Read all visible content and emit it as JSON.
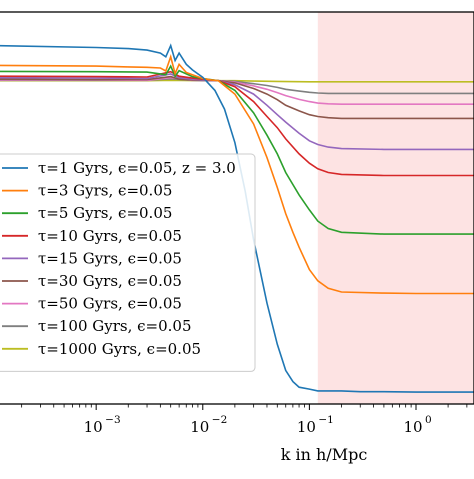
{
  "chart_data": {
    "type": "line",
    "title": "",
    "xlabel": "k in h/Mpc",
    "ylabel": "",
    "xscale": "log",
    "xlim": [
      0.00012,
      3.5
    ],
    "ylim": [
      0,
      1.05
    ],
    "grid": false,
    "legend_position": "lower-left",
    "shaded_region": {
      "x_start": 0.12,
      "x_end": 3.5,
      "color": "#fde3e3"
    },
    "xticks": [
      {
        "value": 0.001,
        "base": "10",
        "exp": "−3"
      },
      {
        "value": 0.01,
        "base": "10",
        "exp": "−2"
      },
      {
        "value": 0.1,
        "base": "10",
        "exp": "−1"
      },
      {
        "value": 1,
        "base": "10",
        "exp": "0"
      }
    ],
    "series": [
      {
        "name": "τ=1 Gyrs, ϵ=0.05, z = 3.0",
        "color": "#1f77b4",
        "x": [
          0.00012,
          0.001,
          0.002,
          0.003,
          0.004,
          0.0045,
          0.005,
          0.0055,
          0.006,
          0.007,
          0.008,
          0.01,
          0.013,
          0.016,
          0.02,
          0.025,
          0.03,
          0.04,
          0.05,
          0.06,
          0.07,
          0.08,
          0.1,
          0.12,
          0.15,
          0.2,
          0.3,
          0.5,
          1,
          3.5
        ],
        "y": [
          0.96,
          0.955,
          0.952,
          0.948,
          0.94,
          0.93,
          0.96,
          0.92,
          0.94,
          0.91,
          0.895,
          0.875,
          0.84,
          0.79,
          0.7,
          0.57,
          0.44,
          0.27,
          0.16,
          0.09,
          0.06,
          0.045,
          0.04,
          0.035,
          0.035,
          0.035,
          0.033,
          0.033,
          0.032,
          0.032
        ]
      },
      {
        "name": "τ=3 Gyrs, ϵ=0.05",
        "color": "#ff7f0e",
        "x": [
          0.00012,
          0.001,
          0.002,
          0.003,
          0.004,
          0.0045,
          0.005,
          0.0055,
          0.006,
          0.007,
          0.008,
          0.01,
          0.012,
          0.014,
          0.02,
          0.03,
          0.04,
          0.05,
          0.06,
          0.07,
          0.08,
          0.1,
          0.12,
          0.15,
          0.2,
          0.5,
          1,
          3.5
        ],
        "y": [
          0.907,
          0.905,
          0.903,
          0.902,
          0.9,
          0.892,
          0.93,
          0.885,
          0.91,
          0.888,
          0.882,
          0.872,
          0.868,
          0.866,
          0.83,
          0.75,
          0.66,
          0.58,
          0.51,
          0.46,
          0.42,
          0.36,
          0.33,
          0.31,
          0.3,
          0.297,
          0.296,
          0.296
        ]
      },
      {
        "name": "τ=5 Gyrs, ϵ=0.05",
        "color": "#2ca02c",
        "x": [
          0.00012,
          0.001,
          0.003,
          0.0045,
          0.005,
          0.0055,
          0.006,
          0.008,
          0.01,
          0.014,
          0.02,
          0.03,
          0.04,
          0.05,
          0.06,
          0.08,
          0.1,
          0.12,
          0.15,
          0.2,
          0.5,
          1,
          3.5
        ],
        "y": [
          0.891,
          0.89,
          0.889,
          0.882,
          0.905,
          0.878,
          0.893,
          0.877,
          0.872,
          0.866,
          0.84,
          0.78,
          0.72,
          0.67,
          0.62,
          0.56,
          0.52,
          0.49,
          0.47,
          0.46,
          0.455,
          0.455,
          0.455
        ]
      },
      {
        "name": "τ=10 Gyrs, ϵ=0.05",
        "color": "#d62728",
        "x": [
          0.00012,
          0.001,
          0.003,
          0.005,
          0.006,
          0.008,
          0.01,
          0.014,
          0.02,
          0.03,
          0.04,
          0.05,
          0.06,
          0.08,
          0.1,
          0.12,
          0.15,
          0.2,
          0.5,
          1,
          3.5
        ],
        "y": [
          0.878,
          0.877,
          0.876,
          0.89,
          0.878,
          0.873,
          0.87,
          0.866,
          0.85,
          0.81,
          0.77,
          0.74,
          0.71,
          0.67,
          0.645,
          0.63,
          0.62,
          0.615,
          0.612,
          0.612,
          0.612
        ]
      },
      {
        "name": "τ=15 Gyrs, ϵ=0.05",
        "color": "#9467bd",
        "x": [
          0.00012,
          0.001,
          0.003,
          0.005,
          0.006,
          0.008,
          0.01,
          0.014,
          0.02,
          0.03,
          0.04,
          0.05,
          0.06,
          0.08,
          0.1,
          0.12,
          0.15,
          0.2,
          0.5,
          1,
          3.5
        ],
        "y": [
          0.874,
          0.873,
          0.872,
          0.884,
          0.874,
          0.87,
          0.868,
          0.866,
          0.855,
          0.83,
          0.8,
          0.775,
          0.755,
          0.725,
          0.705,
          0.695,
          0.688,
          0.684,
          0.682,
          0.682,
          0.682
        ]
      },
      {
        "name": "τ=30 Gyrs, ϵ=0.05",
        "color": "#8c564b",
        "x": [
          0.00012,
          0.001,
          0.003,
          0.005,
          0.006,
          0.008,
          0.01,
          0.014,
          0.02,
          0.03,
          0.04,
          0.05,
          0.06,
          0.08,
          0.1,
          0.12,
          0.15,
          0.2,
          0.5,
          1,
          3.5
        ],
        "y": [
          0.87,
          0.869,
          0.869,
          0.877,
          0.87,
          0.868,
          0.867,
          0.866,
          0.86,
          0.845,
          0.83,
          0.815,
          0.8,
          0.785,
          0.775,
          0.77,
          0.767,
          0.765,
          0.765,
          0.765,
          0.765
        ]
      },
      {
        "name": "τ=50 Gyrs, ϵ=0.05",
        "color": "#e377c2",
        "x": [
          0.00012,
          0.001,
          0.003,
          0.005,
          0.008,
          0.01,
          0.014,
          0.02,
          0.03,
          0.04,
          0.05,
          0.06,
          0.08,
          0.1,
          0.12,
          0.15,
          0.2,
          0.5,
          1,
          3.5
        ],
        "y": [
          0.868,
          0.868,
          0.867,
          0.874,
          0.867,
          0.867,
          0.866,
          0.862,
          0.852,
          0.843,
          0.834,
          0.826,
          0.816,
          0.81,
          0.806,
          0.804,
          0.803,
          0.803,
          0.803,
          0.803
        ]
      },
      {
        "name": "τ=100 Gyrs, ϵ=0.05",
        "color": "#7f7f7f",
        "x": [
          0.00012,
          0.001,
          0.003,
          0.005,
          0.008,
          0.01,
          0.014,
          0.02,
          0.03,
          0.04,
          0.05,
          0.06,
          0.08,
          0.1,
          0.12,
          0.15,
          0.2,
          0.5,
          1,
          3.5
        ],
        "y": [
          0.867,
          0.867,
          0.867,
          0.871,
          0.867,
          0.866,
          0.866,
          0.864,
          0.858,
          0.853,
          0.848,
          0.843,
          0.838,
          0.835,
          0.833,
          0.832,
          0.832,
          0.832,
          0.832,
          0.832
        ]
      },
      {
        "name": "τ=1000 Gyrs, ϵ=0.05",
        "color": "#bcbd22",
        "x": [
          0.00012,
          0.001,
          0.003,
          0.005,
          0.01,
          0.014,
          0.02,
          0.03,
          0.05,
          0.1,
          0.2,
          0.5,
          1,
          3.5
        ],
        "y": [
          0.866,
          0.866,
          0.866,
          0.867,
          0.866,
          0.866,
          0.866,
          0.865,
          0.864,
          0.863,
          0.863,
          0.863,
          0.863,
          0.863
        ]
      }
    ]
  }
}
